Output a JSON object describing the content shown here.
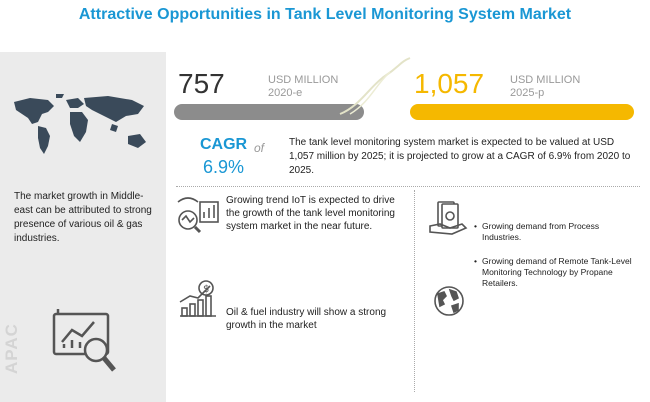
{
  "title": "Attractive Opportunities in Tank Level Monitoring System Market",
  "left_panel": {
    "text": "The market growth in Middle-east can be attributed to strong presence of various oil & gas industries.",
    "region_label": "APAC",
    "map_icon": "world-map-icon",
    "analytics_icon": "analytics-magnifier-icon"
  },
  "metrics": {
    "start": {
      "value": "757",
      "unit": "USD MILLION",
      "year": "2020-e",
      "bar_color": "#8c8c8c"
    },
    "end": {
      "value": "1,057",
      "unit": "USD MILLION",
      "year": "2025-p",
      "bar_color": "#f5b800"
    }
  },
  "cagr": {
    "label": "CAGR",
    "of": "of",
    "value": "6.9%",
    "description": "The tank level monitoring system market is expected to be valued at USD 1,057 million by 2025; it is projected to grow at a CAGR of 6.9% from 2020 to 2025."
  },
  "insights": [
    {
      "icon": "iot-chart-icon",
      "text": "Growing trend IoT is expected to drive the growth of the tank level monitoring system market in the near future."
    },
    {
      "icon": "oil-fuel-growth-icon",
      "text": "Oil & fuel industry will show a strong growth in the market"
    }
  ],
  "drivers": {
    "money_icon": "money-hand-icon",
    "globe_icon": "globe-icon",
    "items": [
      "Growing demand from Process Industries.",
      "Growing demand of Remote Tank-Level Monitoring Technology by Propane Retailers."
    ]
  },
  "colors": {
    "accent": "#1a97d4",
    "highlight": "#f5b800",
    "grey_bar": "#8c8c8c"
  }
}
